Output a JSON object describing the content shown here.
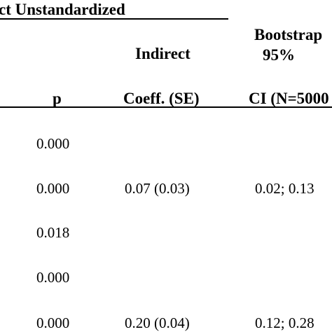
{
  "header": {
    "group_title": "ct Unstandardized",
    "col_p": "p",
    "col_indirect_line1": "Indirect",
    "col_indirect_line2": "Coeff. (SE)",
    "col_boot_line1": "Bootstrap",
    "col_boot_line2": "95%",
    "col_boot_line3": "CI (N=5000"
  },
  "rows": [
    {
      "p": "0.000",
      "indirect": "",
      "ci": ""
    },
    {
      "p": "0.000",
      "indirect": "0.07 (0.03)",
      "ci": "0.02; 0.13"
    },
    {
      "p": "0.018",
      "indirect": "",
      "ci": ""
    },
    {
      "p": "0.000",
      "indirect": "",
      "ci": ""
    },
    {
      "p": "0.000",
      "indirect": "0.20 (0.04)",
      "ci": "0.12; 0.28"
    }
  ]
}
